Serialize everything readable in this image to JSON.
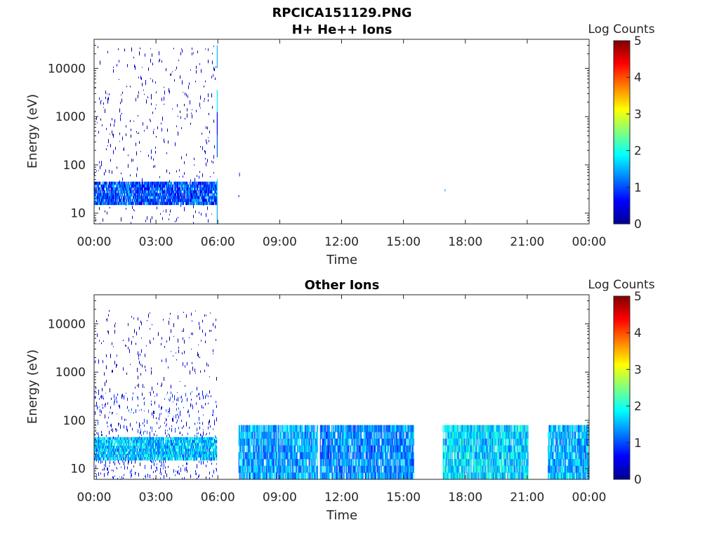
{
  "figure_title": "RPCICA151129.PNG",
  "chart_data": [
    {
      "type": "heatmap",
      "title": "H+ He++ Ions",
      "xlabel": "Time",
      "ylabel": "Energy (eV)",
      "x_tick_labels": [
        "00:00",
        "03:00",
        "06:00",
        "09:00",
        "12:00",
        "15:00",
        "18:00",
        "21:00",
        "00:00"
      ],
      "x_range_hours": [
        0,
        24
      ],
      "y_scale": "log",
      "y_range": [
        6,
        40000
      ],
      "y_tick_values": [
        10,
        100,
        1000,
        10000
      ],
      "y_tick_labels": [
        "10",
        "100",
        "1000",
        "10000"
      ],
      "colorbar": {
        "label": "Log Counts",
        "min": 0,
        "max": 5,
        "tick_labels": [
          "0",
          "1",
          "2",
          "3",
          "4",
          "5"
        ],
        "colormap": "jet"
      },
      "activity": [
        {
          "start_h": 0.0,
          "end_h": 5.95,
          "emin": 6,
          "emax": 30000,
          "level": 0.3,
          "sparse": true
        },
        {
          "start_h": 0.0,
          "end_h": 5.95,
          "emin": 15,
          "emax": 45,
          "level": 1.0,
          "sparse": false
        },
        {
          "start_h": 5.95,
          "end_h": 6.0,
          "emin": 6,
          "emax": 30000,
          "level": 1.2,
          "sparse": false
        },
        {
          "start_h": 7.0,
          "end_h": 7.08,
          "emin": 6,
          "emax": 80,
          "level": 0.5,
          "sparse": true
        },
        {
          "start_h": 17.0,
          "end_h": 17.05,
          "emin": 6,
          "emax": 80,
          "level": 1.0,
          "sparse": true
        }
      ]
    },
    {
      "type": "heatmap",
      "title": "Other Ions",
      "xlabel": "Time",
      "ylabel": "Energy (eV)",
      "x_tick_labels": [
        "00:00",
        "03:00",
        "06:00",
        "09:00",
        "12:00",
        "15:00",
        "18:00",
        "21:00",
        "00:00"
      ],
      "x_range_hours": [
        0,
        24
      ],
      "y_scale": "log",
      "y_range": [
        6,
        40000
      ],
      "y_tick_values": [
        10,
        100,
        1000,
        10000
      ],
      "y_tick_labels": [
        "10",
        "100",
        "1000",
        "10000"
      ],
      "colorbar": {
        "label": "Log Counts",
        "min": 0,
        "max": 5,
        "tick_labels": [
          "0",
          "1",
          "2",
          "3",
          "4",
          "5"
        ],
        "colormap": "jet"
      },
      "activity": [
        {
          "start_h": 0.0,
          "end_h": 5.95,
          "emin": 6,
          "emax": 20000,
          "level": 0.3,
          "sparse": true
        },
        {
          "start_h": 0.0,
          "end_h": 5.95,
          "emin": 6,
          "emax": 400,
          "level": 0.8,
          "sparse": true
        },
        {
          "start_h": 0.0,
          "end_h": 5.95,
          "emin": 15,
          "emax": 45,
          "level": 1.6,
          "sparse": false
        },
        {
          "start_h": 7.0,
          "end_h": 10.85,
          "emin": 6,
          "emax": 80,
          "level": 1.4,
          "sparse": false
        },
        {
          "start_h": 10.95,
          "end_h": 15.5,
          "emin": 6,
          "emax": 80,
          "level": 1.3,
          "sparse": false
        },
        {
          "start_h": 16.9,
          "end_h": 21.05,
          "emin": 6,
          "emax": 80,
          "level": 1.7,
          "sparse": false
        },
        {
          "start_h": 22.0,
          "end_h": 24.0,
          "emin": 6,
          "emax": 80,
          "level": 1.5,
          "sparse": false
        }
      ]
    }
  ]
}
